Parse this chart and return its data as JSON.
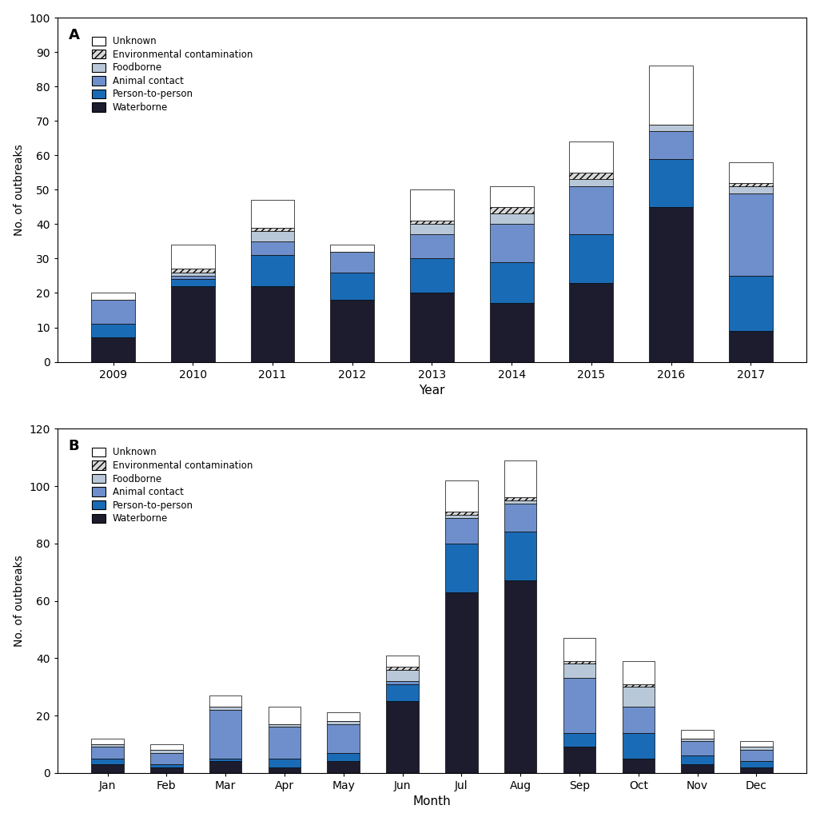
{
  "panel_a": {
    "years": [
      "2009",
      "2010",
      "2011",
      "2012",
      "2013",
      "2014",
      "2015",
      "2016",
      "2017"
    ],
    "waterborne": [
      7,
      22,
      22,
      18,
      20,
      17,
      23,
      45,
      9
    ],
    "person_to_person": [
      4,
      2,
      9,
      8,
      10,
      12,
      14,
      14,
      16
    ],
    "animal_contact": [
      7,
      1,
      4,
      6,
      7,
      11,
      14,
      8,
      24
    ],
    "foodborne": [
      0,
      1,
      3,
      0,
      3,
      3,
      2,
      2,
      2
    ],
    "env_contamination": [
      0,
      1,
      1,
      0,
      1,
      2,
      2,
      0,
      1
    ],
    "unknown": [
      2,
      7,
      8,
      2,
      9,
      6,
      9,
      17,
      6
    ],
    "ylim": [
      0,
      100
    ],
    "yticks": [
      0,
      10,
      20,
      30,
      40,
      50,
      60,
      70,
      80,
      90,
      100
    ],
    "xlabel": "Year",
    "ylabel": "No. of outbreaks",
    "panel_label": "A"
  },
  "panel_b": {
    "months": [
      "Jan",
      "Feb",
      "Mar",
      "Apr",
      "May",
      "Jun",
      "Jul",
      "Aug",
      "Sep",
      "Oct",
      "Nov",
      "Dec"
    ],
    "waterborne": [
      3,
      2,
      4,
      2,
      4,
      25,
      63,
      67,
      9,
      5,
      3,
      2
    ],
    "person_to_person": [
      2,
      1,
      1,
      3,
      3,
      6,
      17,
      17,
      5,
      9,
      3,
      2
    ],
    "animal_contact": [
      4,
      4,
      17,
      11,
      10,
      1,
      9,
      10,
      19,
      9,
      5,
      4
    ],
    "foodborne": [
      1,
      1,
      1,
      1,
      1,
      4,
      1,
      1,
      5,
      7,
      1,
      1
    ],
    "env_contamination": [
      0,
      0,
      0,
      0,
      0,
      1,
      1,
      1,
      1,
      1,
      0,
      0
    ],
    "unknown": [
      2,
      2,
      4,
      6,
      3,
      4,
      11,
      13,
      8,
      8,
      3,
      2
    ],
    "ylim": [
      0,
      120
    ],
    "yticks": [
      0,
      20,
      40,
      60,
      80,
      100,
      120
    ],
    "xlabel": "Month",
    "ylabel": "No. of outbreaks",
    "panel_label": "B"
  },
  "colors": {
    "waterborne": "#1c1c2e",
    "person_to_person": "#1a6bb5",
    "animal_contact": "#6e8fcb",
    "foodborne": "#b8c8d8",
    "env_contamination": "#d8d8d8",
    "unknown": "#ffffff"
  },
  "hatch_env": "////",
  "bar_width": 0.55,
  "figsize": [
    10.26,
    10.27
  ],
  "dpi": 100
}
